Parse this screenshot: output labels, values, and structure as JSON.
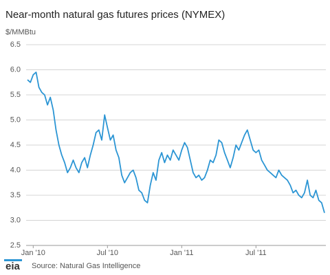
{
  "chart_data": {
    "type": "line",
    "title": "Near-month natural gas futures prices (NYMEX)",
    "y_label": "$/MMBtu",
    "source": "Source: Natural Gas Intelligence",
    "logo": "eia",
    "categories": [
      null,
      null,
      "Jan '10",
      null,
      null,
      null,
      null,
      null,
      null,
      null,
      null,
      null,
      null,
      null,
      null,
      null,
      null,
      null,
      null,
      null,
      null,
      null,
      null,
      null,
      null,
      null,
      null,
      null,
      "Jul '10",
      null,
      null,
      null,
      null,
      null,
      null,
      null,
      null,
      null,
      null,
      null,
      null,
      null,
      null,
      null,
      null,
      null,
      null,
      null,
      null,
      null,
      null,
      null,
      null,
      null,
      "Jan '11",
      null,
      null,
      null,
      null,
      null,
      null,
      null,
      null,
      null,
      null,
      null,
      null,
      null,
      null,
      null,
      null,
      null,
      null,
      null,
      null,
      null,
      null,
      null,
      null,
      null,
      "Jul '11",
      null,
      null,
      null,
      null,
      null,
      null,
      null,
      null,
      null,
      null,
      null,
      null,
      null,
      null,
      null,
      null,
      null,
      null,
      null,
      null,
      null,
      null,
      null,
      null
    ],
    "values": [
      5.8,
      5.75,
      5.9,
      5.95,
      5.65,
      5.55,
      5.5,
      5.3,
      5.45,
      5.2,
      4.8,
      4.5,
      4.3,
      4.15,
      3.95,
      4.05,
      4.2,
      4.05,
      3.95,
      4.15,
      4.25,
      4.05,
      4.3,
      4.5,
      4.75,
      4.8,
      4.6,
      5.1,
      4.85,
      4.6,
      4.7,
      4.4,
      4.25,
      3.9,
      3.75,
      3.85,
      3.95,
      4.0,
      3.85,
      3.6,
      3.55,
      3.4,
      3.35,
      3.7,
      3.95,
      3.8,
      4.2,
      4.35,
      4.15,
      4.3,
      4.2,
      4.4,
      4.3,
      4.2,
      4.4,
      4.55,
      4.45,
      4.2,
      3.95,
      3.85,
      3.9,
      3.8,
      3.85,
      4.0,
      4.2,
      4.15,
      4.3,
      4.6,
      4.55,
      4.35,
      4.2,
      4.05,
      4.25,
      4.5,
      4.4,
      4.55,
      4.7,
      4.8,
      4.6,
      4.4,
      4.35,
      4.4,
      4.2,
      4.1,
      4.0,
      3.95,
      3.9,
      3.85,
      4.0,
      3.9,
      3.85,
      3.8,
      3.7,
      3.55,
      3.6,
      3.5,
      3.45,
      3.55,
      3.8,
      3.5,
      3.45,
      3.6,
      3.4,
      3.35,
      3.15
    ],
    "color": "#2b95d4",
    "ylim": [
      2.5,
      6.5
    ],
    "yticks": [
      2.5,
      {
        "value": 3,
        "label": "3.0"
      },
      3.5,
      {
        "value": 4,
        "label": "4.0"
      },
      4.5,
      {
        "value": 5,
        "label": "5.0"
      },
      5.5,
      {
        "value": 6,
        "label": "6.0"
      },
      6.5
    ],
    "grid": true
  }
}
